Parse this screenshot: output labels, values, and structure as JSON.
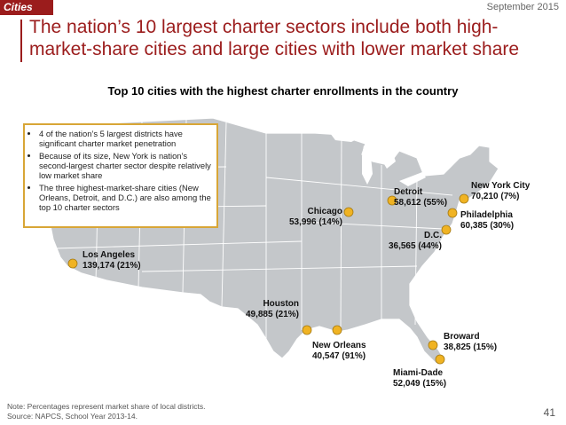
{
  "header": {
    "section_tag": "Cities",
    "date": "September 2015"
  },
  "title": "The nation’s 10 largest charter sectors include both high-market-share cities and large cities with lower market share",
  "subtitle": "Top 10 cities with the highest charter enrollments in the country",
  "callout": {
    "bullets": [
      "4 of the nation’s 5 largest districts have significant charter market penetration",
      "Because of its size, New York is nation’s second-largest charter sector despite relatively low market share",
      "The three highest-market-share cities (New Orleans, Detroit, and D.C.) are also among the top 10 charter sectors"
    ]
  },
  "cities": [
    {
      "name": "Los Angeles",
      "value": "139,174 (21%)"
    },
    {
      "name": "Chicago",
      "value": "53,996 (14%)"
    },
    {
      "name": "Detroit",
      "value": "58,612 (55%)"
    },
    {
      "name": "New York City",
      "value": "70,210 (7%)"
    },
    {
      "name": "Philadelphia",
      "value": "60,385 (30%)"
    },
    {
      "name": "D.C.",
      "value": "36,565 (44%)"
    },
    {
      "name": "Houston",
      "value": "49,885 (21%)"
    },
    {
      "name": "New Orleans",
      "value": "40,547 (91%)"
    },
    {
      "name": "Broward",
      "value": "38,825 (15%)"
    },
    {
      "name": "Miami-Dade",
      "value": "52,049 (15%)"
    }
  ],
  "colors": {
    "accent": "#9b1c1c",
    "map_fill": "#c4c7ca",
    "marker": "#f0b323",
    "callout_border": "#d8a636"
  },
  "footnote": {
    "note": "Note: Percentages represent market share of local districts.",
    "source": "Source: NAPCS, School Year 2013-14."
  },
  "page_number": "41"
}
